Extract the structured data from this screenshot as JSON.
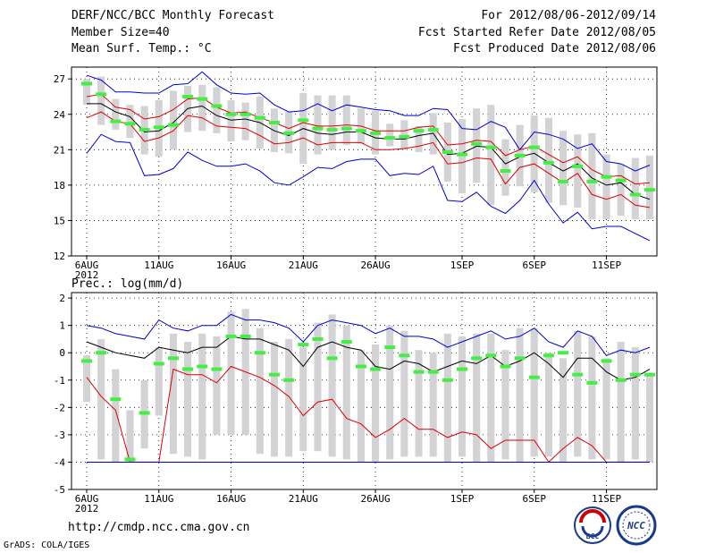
{
  "header": {
    "title": "DERF/NCC/BCC Monthly Forecast",
    "member_size": "Member Size=40",
    "variable": "Mean Surf. Temp.: °C",
    "period": "For 2012/08/06-2012/09/14",
    "started": "Fcst Started Refer Date 2012/08/05",
    "produced": "Fcst Produced Date 2012/08/06"
  },
  "footer": {
    "url": "http://cmdp.ncc.cma.gov.cn",
    "credit": "GrADS: COLA/IGES",
    "logo_left": "BCC",
    "logo_right": "NCC"
  },
  "colors": {
    "max": "#0000cc",
    "min": "#0000cc",
    "mean": "#000000",
    "band": "#dd0000",
    "observed": "#44ee44",
    "box": "#d3d3d5"
  },
  "chart_data": [
    {
      "type": "box",
      "title": "Mean Surf. Temp.: °C",
      "ylabel": "°C",
      "ylim": [
        12,
        28
      ],
      "yticks": [
        12,
        15,
        18,
        21,
        24,
        27
      ],
      "xlim": [
        0,
        39
      ],
      "x_ticks": [
        {
          "day": 0,
          "label": "6AUG",
          "sub": "2012"
        },
        {
          "day": 5,
          "label": "11AUG"
        },
        {
          "day": 10,
          "label": "16AUG"
        },
        {
          "day": 15,
          "label": "21AUG"
        },
        {
          "day": 20,
          "label": "26AUG"
        },
        {
          "day": 26,
          "label": "1SEP"
        },
        {
          "day": 31,
          "label": "6SEP"
        },
        {
          "day": 36,
          "label": "11SEP"
        }
      ],
      "series": {
        "max": [
          27.3,
          26.9,
          25.9,
          25.9,
          25.8,
          25.8,
          26.5,
          26.6,
          27.6,
          26.5,
          25.8,
          25.7,
          25.8,
          24.8,
          24.2,
          24.3,
          24.9,
          24.3,
          24.8,
          24.6,
          24.4,
          24.3,
          23.9,
          23.9,
          24.5,
          24.4,
          22.8,
          22.7,
          23.4,
          22.9,
          21.0,
          22.5,
          22.3,
          21.9,
          21.1,
          21.5,
          20.0,
          19.8,
          19.2,
          19.7
        ],
        "band_high": [
          25.5,
          25.7,
          24.6,
          24.4,
          23.6,
          23.8,
          24.4,
          25.3,
          25.4,
          24.6,
          24.1,
          24.2,
          23.7,
          23.3,
          22.8,
          23.3,
          23.0,
          23.0,
          23.1,
          23.0,
          22.6,
          22.6,
          22.6,
          22.9,
          23.0,
          21.4,
          21.5,
          21.8,
          21.7,
          20.5,
          21.0,
          21.3,
          20.6,
          19.9,
          20.4,
          19.3,
          18.7,
          18.8,
          18.1,
          18.2
        ],
        "mean": [
          24.9,
          24.9,
          24.2,
          23.8,
          22.5,
          22.6,
          23.3,
          24.5,
          24.7,
          23.9,
          23.5,
          23.6,
          23.3,
          22.6,
          22.2,
          22.8,
          22.4,
          22.3,
          22.5,
          22.5,
          22.0,
          21.9,
          21.9,
          22.2,
          22.4,
          20.6,
          20.7,
          21.3,
          21.2,
          19.8,
          20.4,
          20.7,
          19.9,
          19.2,
          19.8,
          18.6,
          18.0,
          18.2,
          17.2,
          16.8
        ],
        "band_low": [
          23.7,
          24.2,
          23.4,
          23.2,
          21.7,
          22.0,
          22.6,
          23.9,
          23.7,
          23.0,
          22.9,
          22.8,
          22.2,
          21.5,
          21.6,
          22.0,
          21.4,
          21.6,
          21.6,
          21.6,
          21.0,
          21.0,
          21.1,
          21.3,
          21.6,
          19.8,
          19.9,
          20.3,
          20.2,
          18.1,
          19.5,
          19.8,
          19.0,
          18.2,
          19.0,
          17.2,
          16.8,
          17.2,
          16.3,
          16.1
        ],
        "min": [
          20.7,
          22.3,
          21.7,
          21.6,
          18.8,
          18.9,
          19.4,
          20.8,
          20.1,
          19.6,
          19.6,
          19.8,
          19.2,
          18.2,
          18.0,
          18.7,
          19.5,
          19.4,
          20.0,
          20.2,
          20.2,
          18.8,
          19.0,
          18.9,
          19.6,
          16.7,
          16.6,
          17.4,
          16.2,
          15.6,
          16.7,
          18.4,
          16.4,
          14.8,
          15.7,
          14.3,
          14.5,
          14.5,
          13.9,
          13.3
        ],
        "box_top": [
          27.0,
          27.2,
          25.3,
          24.8,
          24.7,
          25.2,
          26.0,
          26.4,
          26.5,
          26.3,
          25.2,
          25.0,
          25.5,
          24.5,
          24.2,
          25.8,
          25.6,
          25.6,
          25.6,
          24.5,
          24.3,
          23.2,
          23.5,
          23.0,
          24.1,
          23.3,
          23.6,
          24.5,
          24.8,
          21.9,
          23.1,
          23.9,
          23.7,
          22.6,
          22.3,
          22.4,
          20.6,
          19.8,
          20.3,
          20.5
        ],
        "box_bottom": [
          24.8,
          23.1,
          22.7,
          22.0,
          20.6,
          20.4,
          21.0,
          22.5,
          22.6,
          22.4,
          21.7,
          21.8,
          21.1,
          20.8,
          20.7,
          19.8,
          20.6,
          21.0,
          21.4,
          21.5,
          20.6,
          21.3,
          21.0,
          20.8,
          20.6,
          18.3,
          17.3,
          18.2,
          16.3,
          17.1,
          17.9,
          17.4,
          16.5,
          16.3,
          16.1,
          15.1,
          15.1,
          15.4,
          15.1,
          15.1
        ],
        "observed": [
          26.6,
          25.7,
          23.4,
          23.2,
          22.7,
          22.9,
          23.1,
          25.5,
          25.3,
          24.7,
          24.0,
          24.0,
          23.7,
          23.3,
          22.4,
          23.5,
          22.8,
          22.7,
          22.8,
          22.6,
          22.4,
          22.0,
          22.1,
          22.6,
          22.7,
          20.8,
          20.6,
          21.5,
          21.2,
          19.2,
          20.5,
          21.2,
          19.9,
          18.3,
          19.6,
          18.3,
          18.7,
          18.4,
          17.2,
          17.6
        ]
      }
    },
    {
      "type": "box",
      "title": "Prec.: log(mm/d)",
      "ylabel": "log(mm/d)",
      "ylim": [
        -5,
        2.2
      ],
      "yticks": [
        -5,
        -4,
        -3,
        -2,
        -1,
        0,
        1,
        2
      ],
      "xlim": [
        0,
        39
      ],
      "x_ticks": [
        {
          "day": 0,
          "label": "6AUG",
          "sub": "2012"
        },
        {
          "day": 5,
          "label": "11AUG"
        },
        {
          "day": 10,
          "label": "16AUG"
        },
        {
          "day": 15,
          "label": "21AUG"
        },
        {
          "day": 20,
          "label": "26AUG"
        },
        {
          "day": 26,
          "label": "1SEP"
        },
        {
          "day": 31,
          "label": "6SEP"
        },
        {
          "day": 36,
          "label": "11SEP"
        }
      ],
      "series": {
        "max": [
          1.0,
          0.9,
          0.7,
          0.6,
          0.5,
          1.2,
          0.9,
          0.8,
          1.0,
          1.0,
          1.4,
          1.2,
          1.2,
          1.1,
          0.9,
          0.4,
          1.0,
          1.2,
          1.1,
          1.0,
          0.7,
          0.9,
          0.6,
          0.6,
          0.5,
          0.2,
          0.4,
          0.6,
          0.8,
          0.5,
          0.6,
          0.9,
          0.4,
          0.2,
          0.8,
          0.6,
          -0.1,
          0.1,
          0.0,
          0.2
        ],
        "mean": [
          0.4,
          0.2,
          0.0,
          -0.1,
          -0.2,
          0.2,
          0.1,
          0.0,
          0.2,
          0.2,
          0.6,
          0.5,
          0.5,
          0.3,
          0.1,
          -0.5,
          0.2,
          0.4,
          0.2,
          0.1,
          -0.5,
          -0.6,
          -0.3,
          -0.4,
          -0.7,
          -0.5,
          -0.3,
          -0.4,
          -0.1,
          -0.5,
          -0.3,
          0.0,
          -0.4,
          -0.9,
          -0.2,
          -0.2,
          -0.7,
          -1.0,
          -0.9,
          -0.6
        ],
        "min": [
          -0.9,
          -1.6,
          -2.1,
          -4.0,
          -4.0,
          -4.0,
          -0.6,
          -0.8,
          -0.8,
          -1.1,
          -0.5,
          -0.7,
          -0.9,
          -1.2,
          -1.6,
          -2.3,
          -1.8,
          -1.7,
          -2.4,
          -2.6,
          -3.1,
          -2.8,
          -2.4,
          -2.8,
          -2.8,
          -3.1,
          -2.9,
          -3.0,
          -3.5,
          -3.2,
          -3.2,
          -3.2,
          -4.0,
          -3.5,
          -3.1,
          -3.4,
          -4.0,
          -4.0,
          -4.0,
          -4.0
        ],
        "box_top": [
          -0.1,
          0.5,
          -0.6,
          -2.1,
          -1.0,
          0.2,
          0.7,
          0.4,
          0.7,
          0.6,
          1.5,
          1.6,
          0.9,
          0.4,
          0.5,
          0.2,
          1.1,
          1.4,
          1.0,
          0.1,
          0.3,
          1.0,
          0.8,
          0.1,
          0.0,
          0.7,
          0.6,
          0.7,
          0.7,
          0.1,
          0.9,
          0.9,
          0.0,
          -0.2,
          0.8,
          0.6,
          -0.2,
          0.4,
          0.2,
          -0.8
        ],
        "box_bottom": [
          -1.8,
          -3.9,
          -4.0,
          -4.0,
          -3.5,
          -2.3,
          -3.7,
          -3.8,
          -3.9,
          -3.0,
          -3.0,
          -3.0,
          -3.7,
          -3.8,
          -3.8,
          -3.6,
          -3.6,
          -3.8,
          -3.9,
          -4.0,
          -4.0,
          -3.9,
          -3.8,
          -3.8,
          -3.8,
          -4.0,
          -3.8,
          -4.0,
          -4.0,
          -3.9,
          -4.0,
          -3.8,
          -3.8,
          -4.0,
          -3.8,
          -3.9,
          -3.9,
          -4.0,
          -3.9,
          -4.0
        ],
        "observed": [
          -0.3,
          0.0,
          -1.7,
          -3.9,
          -2.2,
          -0.4,
          -0.2,
          -0.6,
          -0.5,
          -0.6,
          0.6,
          0.6,
          0.0,
          -0.8,
          -1.0,
          0.3,
          0.5,
          -0.2,
          0.4,
          -0.5,
          -0.6,
          0.2,
          -0.1,
          -0.7,
          -0.7,
          -1.0,
          -0.6,
          -0.2,
          -0.1,
          -0.5,
          -0.2,
          -0.9,
          -0.1,
          0.0,
          -0.8,
          -1.1,
          -0.3,
          -1.0,
          -0.8,
          -0.8
        ]
      }
    }
  ]
}
